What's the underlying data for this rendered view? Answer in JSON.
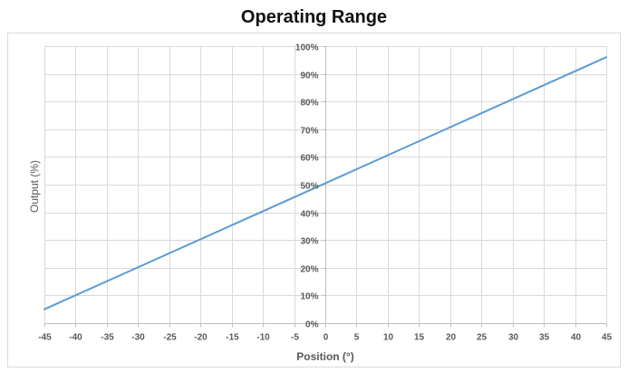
{
  "chart_data": {
    "type": "line",
    "title": "Operating Range",
    "xlabel": "Position (°)",
    "ylabel": "Output (%)",
    "xlim": [
      -45,
      45
    ],
    "ylim": [
      0,
      100
    ],
    "x_ticks": [
      -45,
      -40,
      -35,
      -30,
      -25,
      -20,
      -15,
      -10,
      -5,
      0,
      5,
      10,
      15,
      20,
      25,
      30,
      35,
      40,
      45
    ],
    "y_ticks": [
      0,
      10,
      20,
      30,
      40,
      50,
      60,
      70,
      80,
      90,
      100
    ],
    "x_tick_labels": [
      "-45",
      "-40",
      "-35",
      "-30",
      "-25",
      "-20",
      "-15",
      "-10",
      "-5",
      "0",
      "5",
      "10",
      "15",
      "20",
      "25",
      "30",
      "35",
      "40",
      "45"
    ],
    "y_tick_labels": [
      "0%",
      "10%",
      "20%",
      "30%",
      "40%",
      "50%",
      "60%",
      "70%",
      "80%",
      "90%",
      "100%"
    ],
    "grid": true,
    "series": [
      {
        "x": [
          -45,
          45
        ],
        "y": [
          5,
          96
        ],
        "color": "#5b9bd5"
      }
    ],
    "colors": {
      "grid": "#d9d9d9",
      "axis": "#bfbfbf",
      "tick_label": "#595959",
      "axis_title": "#595959",
      "border": "#d9d9d9"
    }
  }
}
